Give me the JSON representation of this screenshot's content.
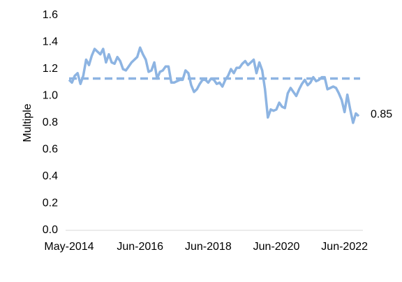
{
  "chart_data": {
    "type": "line",
    "y_label": "Multiple",
    "categories": [
      "May-2014",
      null,
      null,
      null,
      null,
      null,
      null,
      null,
      null,
      null,
      null,
      null,
      null,
      null,
      null,
      null,
      null,
      null,
      null,
      null,
      null,
      null,
      null,
      null,
      null,
      "Jun-2016",
      null,
      null,
      null,
      null,
      null,
      null,
      null,
      null,
      null,
      null,
      null,
      null,
      null,
      null,
      null,
      null,
      null,
      null,
      null,
      null,
      null,
      null,
      null,
      "Jun-2018",
      null,
      null,
      null,
      null,
      null,
      null,
      null,
      null,
      null,
      null,
      null,
      null,
      null,
      null,
      null,
      null,
      null,
      null,
      null,
      null,
      null,
      null,
      null,
      "Jun-2020",
      null,
      null,
      null,
      null,
      null,
      null,
      null,
      null,
      null,
      null,
      null,
      null,
      null,
      null,
      null,
      null,
      null,
      null,
      null,
      null,
      null,
      null,
      null,
      "Jun-2022",
      null,
      null,
      null,
      null,
      null
    ],
    "series": [
      {
        "color": "#8db4e2",
        "values": [
          1.12,
          1.1,
          1.15,
          1.17,
          1.09,
          1.15,
          1.27,
          1.23,
          1.3,
          1.35,
          1.33,
          1.31,
          1.35,
          1.25,
          1.31,
          1.25,
          1.24,
          1.29,
          1.26,
          1.2,
          1.19,
          1.22,
          1.25,
          1.27,
          1.29,
          1.36,
          1.31,
          1.27,
          1.18,
          1.19,
          1.25,
          1.13,
          1.18,
          1.19,
          1.22,
          1.22,
          1.1,
          1.1,
          1.11,
          1.12,
          1.12,
          1.19,
          1.17,
          1.08,
          1.03,
          1.05,
          1.09,
          1.12,
          1.12,
          1.1,
          1.13,
          1.12,
          1.09,
          1.1,
          1.07,
          1.12,
          1.15,
          1.2,
          1.17,
          1.21,
          1.21,
          1.24,
          1.26,
          1.23,
          1.25,
          1.27,
          1.17,
          1.25,
          1.19,
          1.05,
          0.84,
          0.9,
          0.89,
          0.9,
          0.95,
          0.92,
          0.91,
          1.02,
          1.06,
          1.03,
          1.0,
          1.05,
          1.09,
          1.12,
          1.08,
          1.1,
          1.14,
          1.11,
          1.12,
          1.14,
          1.14,
          1.05,
          1.06,
          1.07,
          1.06,
          1.02,
          0.97,
          0.88,
          1.01,
          0.9,
          0.8,
          0.87,
          0.85
        ]
      }
    ],
    "average": 1.13,
    "average_color": "#8db4e2",
    "ylim": [
      0,
      1.6
    ],
    "yticks": [
      {
        "value": 0,
        "label": "0.0"
      },
      {
        "value": 0.2,
        "label": "0.2"
      },
      {
        "value": 0.4,
        "label": "0.4"
      },
      {
        "value": 0.6,
        "label": "0.6"
      },
      {
        "value": 0.8,
        "label": "0.8"
      },
      {
        "value": 1,
        "label": "1.0"
      },
      {
        "value": 1.2,
        "label": "1.2"
      },
      {
        "value": 1.4,
        "label": "1.4"
      },
      {
        "value": 1.6,
        "label": "1.6"
      }
    ]
  }
}
